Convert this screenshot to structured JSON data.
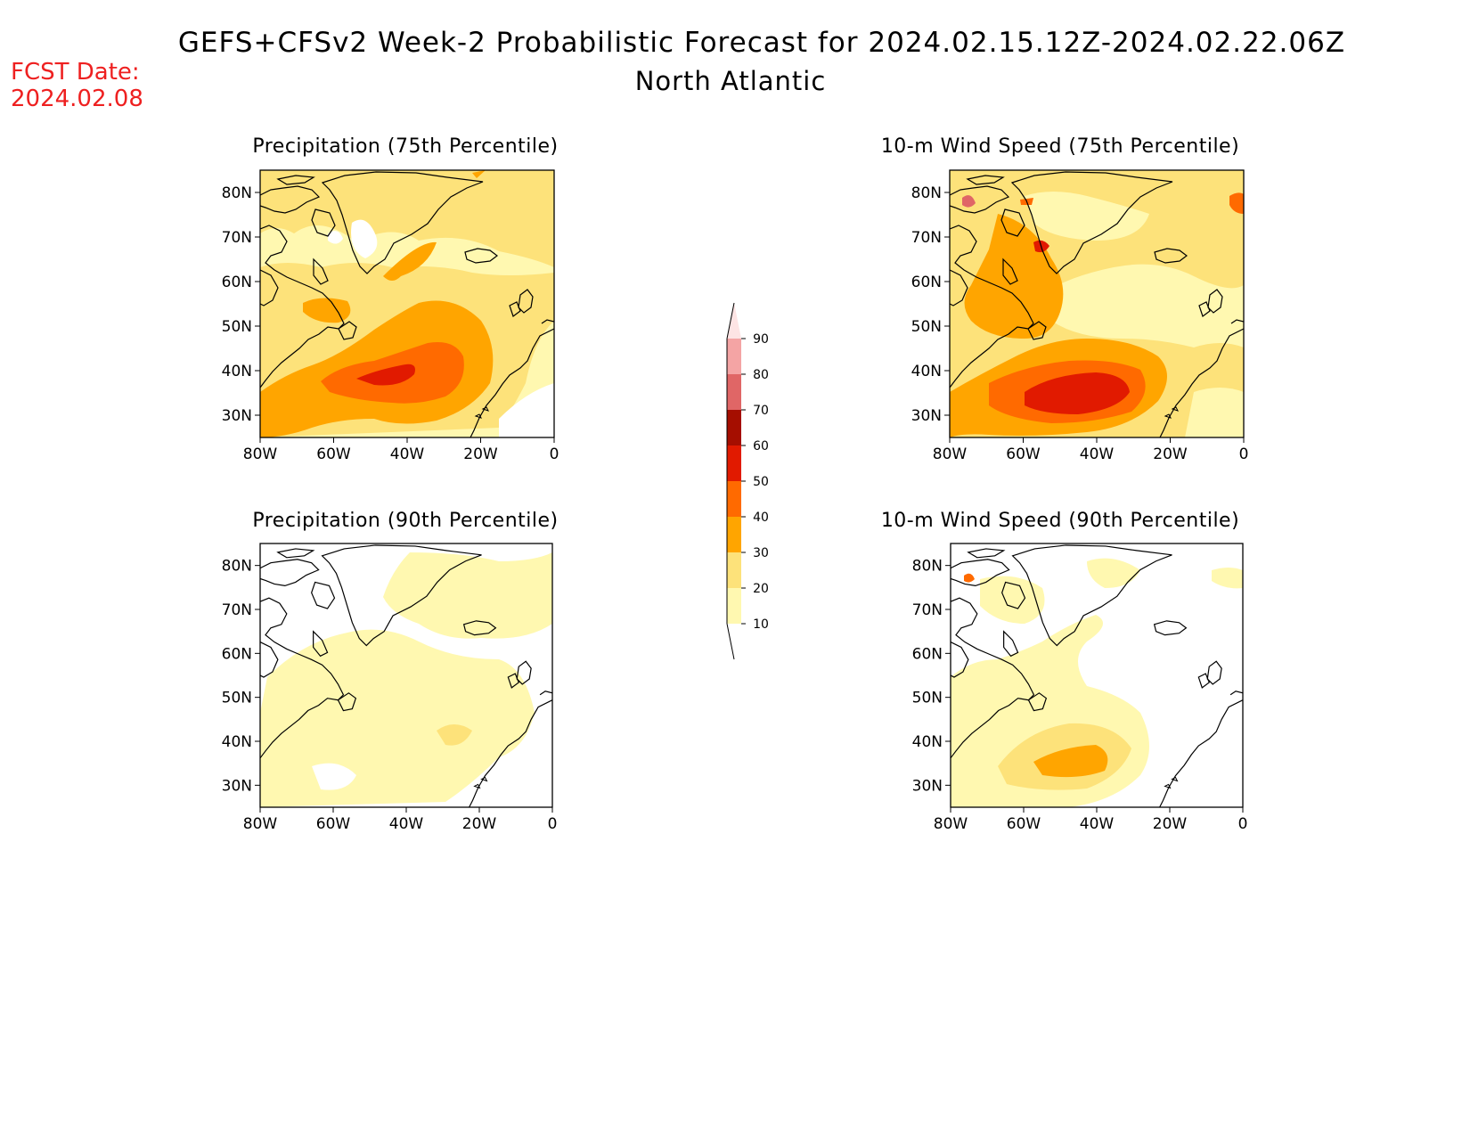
{
  "header": {
    "title": "GEFS+CFSv2 Week-2 Probabilistic Forecast for 2024.02.15.12Z-2024.02.22.06Z",
    "region": "North Atlantic",
    "fcst_label": "FCST Date:",
    "fcst_date": "2024.02.08",
    "fcst_color": "#ee2020"
  },
  "panels": [
    {
      "id": "precip-75",
      "title": "Precipitation (75th Percentile)"
    },
    {
      "id": "wind-75",
      "title": "10-m Wind Speed (75th Percentile)"
    },
    {
      "id": "precip-90",
      "title": "Precipitation (90th Percentile)"
    },
    {
      "id": "wind-90",
      "title": "10-m Wind Speed (90th Percentile)"
    }
  ],
  "axes": {
    "lat_labels": [
      "80N",
      "70N",
      "60N",
      "50N",
      "40N",
      "30N"
    ],
    "lon_labels": [
      "80W",
      "60W",
      "40W",
      "20W",
      "0"
    ]
  },
  "colorbar": {
    "levels": [
      "10",
      "20",
      "30",
      "40",
      "50",
      "60",
      "70",
      "80",
      "90"
    ],
    "colors": [
      "#fff8b0",
      "#fde27a",
      "#ffa500",
      "#ff6a00",
      "#e11a00",
      "#a50e00",
      "#e06666",
      "#f4a4a4",
      "#fde4e4"
    ]
  }
}
